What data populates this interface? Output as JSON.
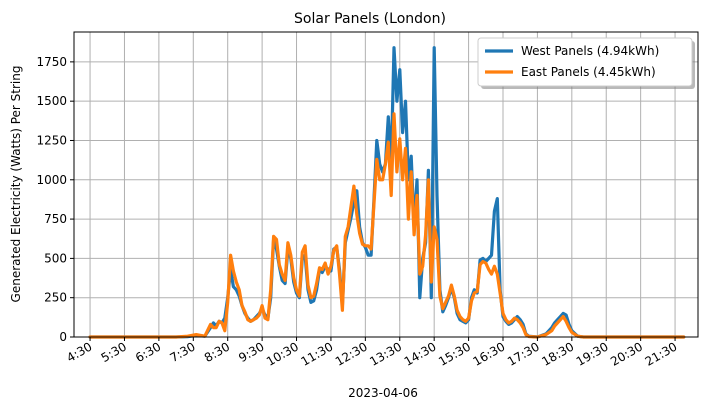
{
  "chart_data": {
    "type": "line",
    "title": "Solar Panels (London)",
    "xlabel": "2023-04-06",
    "ylabel": "Generated Electricity (Watts) Per String",
    "ylim": [
      0,
      1940
    ],
    "xlim": [
      "4:02",
      "22:10"
    ],
    "grid": true,
    "legend_position": "top-right",
    "x_ticks": [
      "4:30",
      "5:30",
      "6:30",
      "7:30",
      "8:30",
      "9:30",
      "10:30",
      "11:30",
      "12:30",
      "13:30",
      "14:30",
      "15:30",
      "16:30",
      "17:30",
      "18:30",
      "19:30",
      "20:30",
      "21:30"
    ],
    "y_ticks": [
      0,
      250,
      500,
      750,
      1000,
      1250,
      1500,
      1750
    ],
    "series": [
      {
        "name": "West Panels (4.94kWh)",
        "color": "#1f77b4",
        "points": [
          [
            "4:30",
            0
          ],
          [
            "5:30",
            0
          ],
          [
            "6:30",
            0
          ],
          [
            "7:00",
            0
          ],
          [
            "7:20",
            2
          ],
          [
            "7:35",
            10
          ],
          [
            "7:50",
            5
          ],
          [
            "8:00",
            60
          ],
          [
            "8:05",
            90
          ],
          [
            "8:10",
            70
          ],
          [
            "8:15",
            100
          ],
          [
            "8:20",
            90
          ],
          [
            "8:25",
            120
          ],
          [
            "8:30",
            250
          ],
          [
            "8:35",
            430
          ],
          [
            "8:40",
            320
          ],
          [
            "8:45",
            300
          ],
          [
            "8:50",
            260
          ],
          [
            "8:55",
            200
          ],
          [
            "9:00",
            150
          ],
          [
            "9:05",
            120
          ],
          [
            "9:10",
            100
          ],
          [
            "9:15",
            110
          ],
          [
            "9:20",
            130
          ],
          [
            "9:25",
            150
          ],
          [
            "9:30",
            180
          ],
          [
            "9:35",
            140
          ],
          [
            "9:40",
            120
          ],
          [
            "9:45",
            250
          ],
          [
            "9:50",
            620
          ],
          [
            "9:55",
            560
          ],
          [
            "10:00",
            450
          ],
          [
            "10:05",
            360
          ],
          [
            "10:10",
            340
          ],
          [
            "10:15",
            560
          ],
          [
            "10:20",
            500
          ],
          [
            "10:25",
            350
          ],
          [
            "10:30",
            280
          ],
          [
            "10:35",
            250
          ],
          [
            "10:40",
            500
          ],
          [
            "10:45",
            520
          ],
          [
            "10:50",
            300
          ],
          [
            "10:55",
            220
          ],
          [
            "11:00",
            230
          ],
          [
            "11:05",
            300
          ],
          [
            "11:10",
            430
          ],
          [
            "11:15",
            410
          ],
          [
            "11:20",
            450
          ],
          [
            "11:25",
            430
          ],
          [
            "11:30",
            420
          ],
          [
            "11:35",
            560
          ],
          [
            "11:40",
            570
          ],
          [
            "11:45",
            430
          ],
          [
            "11:50",
            200
          ],
          [
            "11:55",
            600
          ],
          [
            "12:00",
            680
          ],
          [
            "12:05",
            760
          ],
          [
            "12:10",
            860
          ],
          [
            "12:15",
            930
          ],
          [
            "12:20",
            700
          ],
          [
            "12:25",
            600
          ],
          [
            "12:30",
            570
          ],
          [
            "12:35",
            520
          ],
          [
            "12:40",
            520
          ],
          [
            "12:45",
            880
          ],
          [
            "12:50",
            1250
          ],
          [
            "12:55",
            1100
          ],
          [
            "13:00",
            1050
          ],
          [
            "13:05",
            1100
          ],
          [
            "13:10",
            1400
          ],
          [
            "13:15",
            1100
          ],
          [
            "13:20",
            1840
          ],
          [
            "13:25",
            1500
          ],
          [
            "13:30",
            1700
          ],
          [
            "13:35",
            1300
          ],
          [
            "13:40",
            1500
          ],
          [
            "13:45",
            1000
          ],
          [
            "13:50",
            1150
          ],
          [
            "13:55",
            700
          ],
          [
            "14:00",
            1000
          ],
          [
            "14:05",
            250
          ],
          [
            "14:10",
            500
          ],
          [
            "14:15",
            600
          ],
          [
            "14:20",
            1060
          ],
          [
            "14:25",
            250
          ],
          [
            "14:30",
            1840
          ],
          [
            "14:35",
            900
          ],
          [
            "14:40",
            300
          ],
          [
            "14:45",
            160
          ],
          [
            "14:50",
            200
          ],
          [
            "14:55",
            250
          ],
          [
            "15:00",
            310
          ],
          [
            "15:05",
            250
          ],
          [
            "15:10",
            150
          ],
          [
            "15:15",
            110
          ],
          [
            "15:20",
            100
          ],
          [
            "15:25",
            90
          ],
          [
            "15:30",
            110
          ],
          [
            "15:35",
            250
          ],
          [
            "15:40",
            300
          ],
          [
            "15:45",
            280
          ],
          [
            "15:50",
            490
          ],
          [
            "15:55",
            500
          ],
          [
            "16:00",
            480
          ],
          [
            "16:05",
            500
          ],
          [
            "16:10",
            520
          ],
          [
            "16:15",
            800
          ],
          [
            "16:20",
            880
          ],
          [
            "16:25",
            300
          ],
          [
            "16:30",
            130
          ],
          [
            "16:35",
            100
          ],
          [
            "16:40",
            80
          ],
          [
            "16:45",
            90
          ],
          [
            "16:50",
            110
          ],
          [
            "16:55",
            130
          ],
          [
            "17:00",
            110
          ],
          [
            "17:05",
            80
          ],
          [
            "17:10",
            20
          ],
          [
            "17:15",
            5
          ],
          [
            "17:30",
            0
          ],
          [
            "17:45",
            20
          ],
          [
            "17:55",
            60
          ],
          [
            "18:00",
            90
          ],
          [
            "18:05",
            110
          ],
          [
            "18:10",
            130
          ],
          [
            "18:15",
            150
          ],
          [
            "18:20",
            140
          ],
          [
            "18:25",
            80
          ],
          [
            "18:30",
            40
          ],
          [
            "18:40",
            5
          ],
          [
            "18:50",
            0
          ],
          [
            "19:30",
            0
          ],
          [
            "20:30",
            0
          ],
          [
            "21:30",
            0
          ],
          [
            "21:45",
            0
          ]
        ]
      },
      {
        "name": "East Panels (4.45kWh)",
        "color": "#ff7f0e",
        "points": [
          [
            "4:30",
            0
          ],
          [
            "5:30",
            0
          ],
          [
            "6:30",
            0
          ],
          [
            "7:00",
            0
          ],
          [
            "7:20",
            5
          ],
          [
            "7:35",
            15
          ],
          [
            "7:50",
            5
          ],
          [
            "8:00",
            80
          ],
          [
            "8:05",
            60
          ],
          [
            "8:10",
            60
          ],
          [
            "8:15",
            100
          ],
          [
            "8:20",
            90
          ],
          [
            "8:25",
            40
          ],
          [
            "8:30",
            220
          ],
          [
            "8:35",
            520
          ],
          [
            "8:40",
            420
          ],
          [
            "8:45",
            350
          ],
          [
            "8:50",
            300
          ],
          [
            "8:55",
            200
          ],
          [
            "9:00",
            160
          ],
          [
            "9:05",
            110
          ],
          [
            "9:10",
            100
          ],
          [
            "9:15",
            110
          ],
          [
            "9:20",
            120
          ],
          [
            "9:25",
            140
          ],
          [
            "9:30",
            200
          ],
          [
            "9:35",
            120
          ],
          [
            "9:40",
            110
          ],
          [
            "9:45",
            300
          ],
          [
            "9:50",
            640
          ],
          [
            "9:55",
            620
          ],
          [
            "10:00",
            460
          ],
          [
            "10:05",
            400
          ],
          [
            "10:10",
            360
          ],
          [
            "10:15",
            600
          ],
          [
            "10:20",
            520
          ],
          [
            "10:25",
            380
          ],
          [
            "10:30",
            300
          ],
          [
            "10:35",
            260
          ],
          [
            "10:40",
            540
          ],
          [
            "10:45",
            580
          ],
          [
            "10:50",
            330
          ],
          [
            "10:55",
            250
          ],
          [
            "11:00",
            260
          ],
          [
            "11:05",
            340
          ],
          [
            "11:10",
            440
          ],
          [
            "11:15",
            430
          ],
          [
            "11:20",
            470
          ],
          [
            "11:25",
            400
          ],
          [
            "11:30",
            450
          ],
          [
            "11:35",
            550
          ],
          [
            "11:40",
            580
          ],
          [
            "11:45",
            400
          ],
          [
            "11:50",
            170
          ],
          [
            "11:55",
            640
          ],
          [
            "12:00",
            700
          ],
          [
            "12:05",
            830
          ],
          [
            "12:10",
            960
          ],
          [
            "12:15",
            780
          ],
          [
            "12:20",
            660
          ],
          [
            "12:25",
            590
          ],
          [
            "12:30",
            580
          ],
          [
            "12:35",
            580
          ],
          [
            "12:40",
            560
          ],
          [
            "12:45",
            850
          ],
          [
            "12:50",
            1130
          ],
          [
            "12:55",
            1000
          ],
          [
            "13:00",
            1000
          ],
          [
            "13:05",
            1100
          ],
          [
            "13:10",
            1240
          ],
          [
            "13:15",
            900
          ],
          [
            "13:20",
            1420
          ],
          [
            "13:25",
            1050
          ],
          [
            "13:30",
            1260
          ],
          [
            "13:35",
            1000
          ],
          [
            "13:40",
            1200
          ],
          [
            "13:45",
            750
          ],
          [
            "13:50",
            1050
          ],
          [
            "13:55",
            650
          ],
          [
            "14:00",
            900
          ],
          [
            "14:05",
            400
          ],
          [
            "14:10",
            450
          ],
          [
            "14:15",
            650
          ],
          [
            "14:20",
            1000
          ],
          [
            "14:25",
            350
          ],
          [
            "14:30",
            700
          ],
          [
            "14:35",
            620
          ],
          [
            "14:40",
            260
          ],
          [
            "14:45",
            180
          ],
          [
            "14:50",
            220
          ],
          [
            "14:55",
            260
          ],
          [
            "15:00",
            330
          ],
          [
            "15:05",
            260
          ],
          [
            "15:10",
            170
          ],
          [
            "15:15",
            130
          ],
          [
            "15:20",
            110
          ],
          [
            "15:25",
            100
          ],
          [
            "15:30",
            120
          ],
          [
            "15:35",
            230
          ],
          [
            "15:40",
            280
          ],
          [
            "15:45",
            290
          ],
          [
            "15:50",
            460
          ],
          [
            "15:55",
            480
          ],
          [
            "16:00",
            470
          ],
          [
            "16:05",
            430
          ],
          [
            "16:10",
            400
          ],
          [
            "16:15",
            450
          ],
          [
            "16:20",
            400
          ],
          [
            "16:25",
            280
          ],
          [
            "16:30",
            150
          ],
          [
            "16:35",
            110
          ],
          [
            "16:40",
            90
          ],
          [
            "16:45",
            100
          ],
          [
            "16:50",
            120
          ],
          [
            "16:55",
            110
          ],
          [
            "17:00",
            90
          ],
          [
            "17:05",
            60
          ],
          [
            "17:10",
            15
          ],
          [
            "17:15",
            3
          ],
          [
            "17:30",
            0
          ],
          [
            "17:45",
            15
          ],
          [
            "17:55",
            40
          ],
          [
            "18:00",
            70
          ],
          [
            "18:05",
            90
          ],
          [
            "18:10",
            110
          ],
          [
            "18:15",
            130
          ],
          [
            "18:20",
            100
          ],
          [
            "18:25",
            60
          ],
          [
            "18:30",
            30
          ],
          [
            "18:40",
            5
          ],
          [
            "18:50",
            0
          ],
          [
            "19:30",
            0
          ],
          [
            "20:30",
            0
          ],
          [
            "21:30",
            0
          ],
          [
            "21:45",
            0
          ]
        ]
      }
    ]
  }
}
